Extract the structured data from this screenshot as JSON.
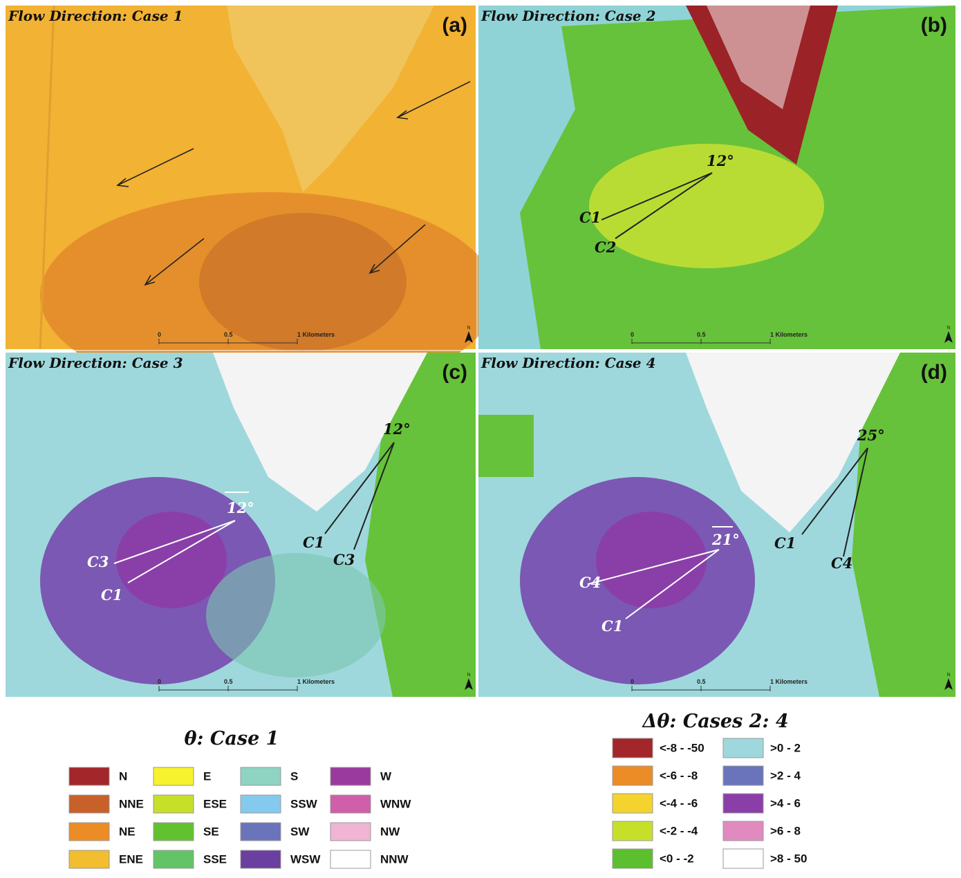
{
  "panels": [
    {
      "title": "Flow Direction: Case 1",
      "label": "(a)",
      "scale": [
        "0",
        "0.5",
        "1 Kilometers"
      ],
      "north": "N",
      "annotations": []
    },
    {
      "title": "Flow Direction: Case 2",
      "label": "(b)",
      "scale": [
        "0",
        "0.5",
        "1 Kilometers"
      ],
      "north": "N",
      "annotations": [
        {
          "text": "12°",
          "color": "#111111"
        },
        {
          "text": "C1",
          "color": "#111111"
        },
        {
          "text": "C2",
          "color": "#111111"
        }
      ]
    },
    {
      "title": "Flow Direction: Case 3",
      "label": "(c)",
      "scale": [
        "0",
        "0.5",
        "1 Kilometers"
      ],
      "north": "N",
      "annotations": [
        {
          "text": "12°",
          "color": "#ffffff"
        },
        {
          "text": "C3",
          "color": "#ffffff"
        },
        {
          "text": "C1",
          "color": "#ffffff"
        },
        {
          "text": "12°",
          "color": "#111111"
        },
        {
          "text": "C1",
          "color": "#111111"
        },
        {
          "text": "C3",
          "color": "#111111"
        }
      ]
    },
    {
      "title": "Flow Direction: Case 4",
      "label": "(d)",
      "scale": [
        "0",
        "0.5",
        "1 Kilometers"
      ],
      "north": "N",
      "annotations": [
        {
          "text": "21°",
          "color": "#ffffff"
        },
        {
          "text": "C4",
          "color": "#ffffff"
        },
        {
          "text": "C1",
          "color": "#ffffff"
        },
        {
          "text": "25°",
          "color": "#111111"
        },
        {
          "text": "C1",
          "color": "#111111"
        },
        {
          "text": "C4",
          "color": "#111111"
        }
      ]
    }
  ],
  "legends": [
    {
      "title": "θ: Case 1",
      "items": [
        {
          "label": "N",
          "color": "#a3262a"
        },
        {
          "label": "NNE",
          "color": "#c8602a"
        },
        {
          "label": "NE",
          "color": "#ec8c26"
        },
        {
          "label": "ENE",
          "color": "#f2bd2e"
        },
        {
          "label": "E",
          "color": "#f7f22e"
        },
        {
          "label": "ESE",
          "color": "#c6e02a"
        },
        {
          "label": "SE",
          "color": "#62c12e"
        },
        {
          "label": "SSE",
          "color": "#62c466"
        },
        {
          "label": "S",
          "color": "#8fd3c2"
        },
        {
          "label": "SSW",
          "color": "#86c9ee"
        },
        {
          "label": "SW",
          "color": "#6a74bb"
        },
        {
          "label": "WSW",
          "color": "#6a3fa0"
        },
        {
          "label": "W",
          "color": "#9b3a9e"
        },
        {
          "label": "WNW",
          "color": "#cf5fa8"
        },
        {
          "label": "NW",
          "color": "#efb5d2"
        },
        {
          "label": "NNW",
          "color": "#ffffff"
        }
      ]
    },
    {
      "title": "Δθ: Cases 2: 4",
      "items": [
        {
          "label": "<-8 - -50",
          "color": "#a3262a"
        },
        {
          "label": "<-6 - -8",
          "color": "#ec8c26"
        },
        {
          "label": "<-4 - -6",
          "color": "#f5d32e"
        },
        {
          "label": "<-2 - -4",
          "color": "#c6e02a"
        },
        {
          "label": "<0 - -2",
          "color": "#5cbf2e"
        },
        {
          "label": ">0 - 2",
          "color": "#9ed8dc"
        },
        {
          "label": ">2 - 4",
          "color": "#6a74bb"
        },
        {
          "label": ">4 - 6",
          "color": "#8a3fa8"
        },
        {
          "label": ">6 - 8",
          "color": "#e08ac0"
        },
        {
          "label": ">8 - 50",
          "color": "#ffffff"
        }
      ]
    }
  ]
}
